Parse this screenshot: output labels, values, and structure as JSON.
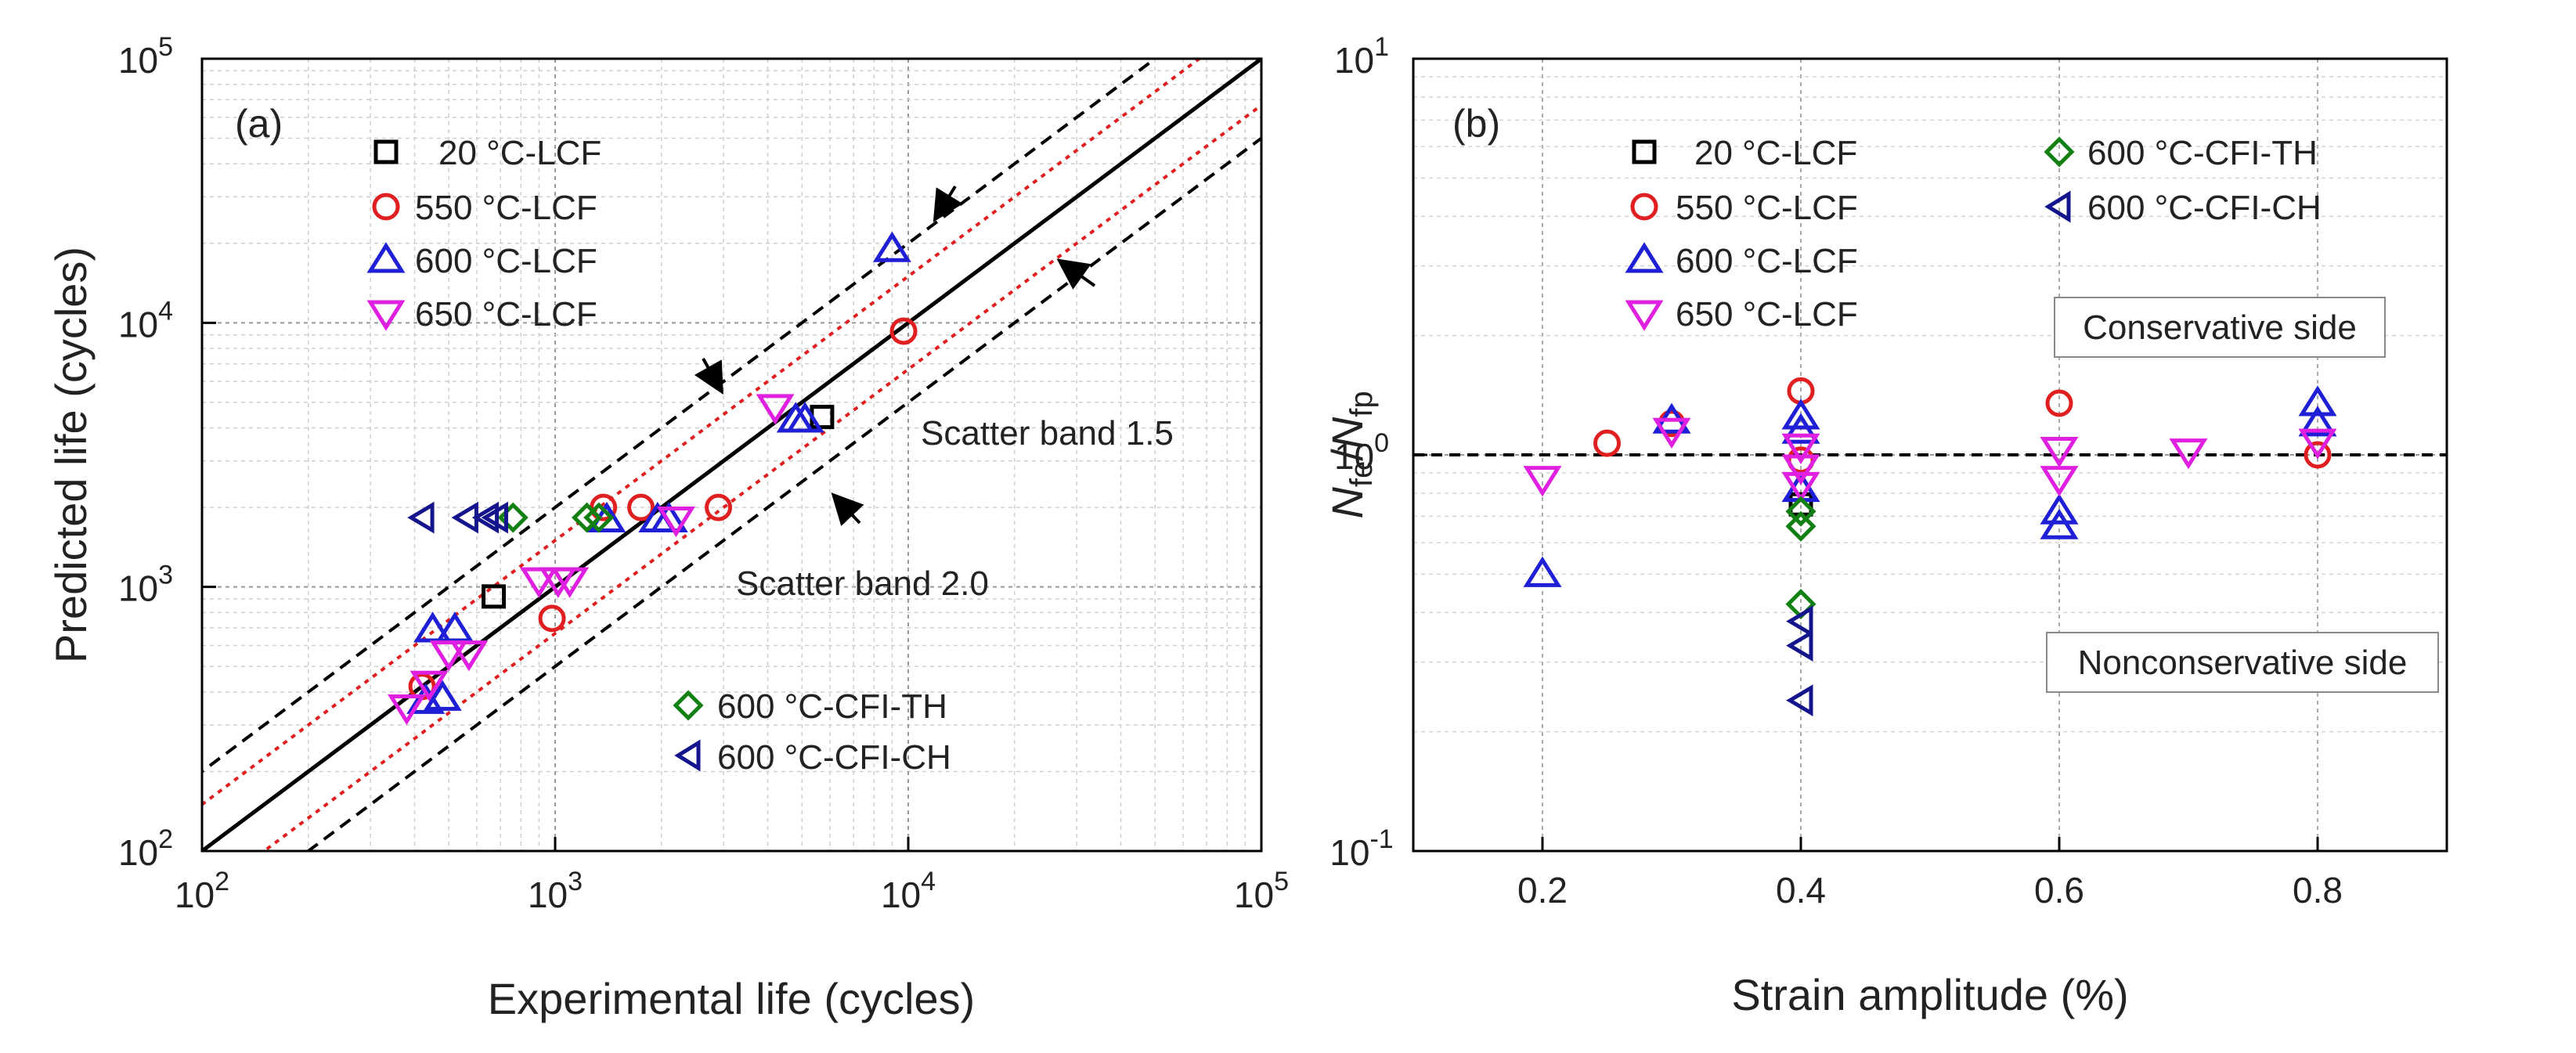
{
  "chart_data": [
    {
      "type": "scatter",
      "panel_label": "(a)",
      "xscale": "log",
      "yscale": "log",
      "xlabel": "Experimental life (cycles)",
      "ylabel": "Predicted life (cycles)",
      "xlim": [
        100,
        100000
      ],
      "ylim": [
        100,
        100000
      ],
      "xticks": [
        {
          "value": 100,
          "base": "10",
          "exp": "2"
        },
        {
          "value": 1000,
          "base": "10",
          "exp": "3"
        },
        {
          "value": 10000,
          "base": "10",
          "exp": "4"
        },
        {
          "value": 100000,
          "base": "10",
          "exp": "5"
        }
      ],
      "yticks": [
        {
          "value": 100,
          "base": "10",
          "exp": "2"
        },
        {
          "value": 1000,
          "base": "10",
          "exp": "3"
        },
        {
          "value": 10000,
          "base": "10",
          "exp": "4"
        },
        {
          "value": 100000,
          "base": "10",
          "exp": "5"
        }
      ],
      "grid": true,
      "reference_lines": [
        {
          "factor": 1,
          "style": "solid",
          "color": "#000000"
        },
        {
          "factor": 1.5,
          "style": "dotted",
          "color": "#e02020"
        },
        {
          "factor": 0.6667,
          "style": "dotted",
          "color": "#e02020"
        },
        {
          "factor": 2,
          "style": "dashed",
          "color": "#000000"
        },
        {
          "factor": 0.5,
          "style": "dashed",
          "color": "#000000"
        }
      ],
      "annotations": [
        "Scatter band 1.5",
        "Scatter band 2.0"
      ],
      "legend": [
        {
          "label": "20 °C-LCF",
          "marker": "square",
          "color": "#000000"
        },
        {
          "label": "550 °C-LCF",
          "marker": "circle",
          "color": "#e02020"
        },
        {
          "label": "600 °C-LCF",
          "marker": "triangle-up",
          "color": "#1f1fd6"
        },
        {
          "label": "650 °C-LCF",
          "marker": "triangle-down",
          "color": "#e020e0"
        },
        {
          "label": "600 °C-CFI-TH",
          "marker": "diamond",
          "color": "#138013"
        },
        {
          "label": "600 °C-CFI-CH",
          "marker": "triangle-left",
          "color": "#14148c"
        }
      ],
      "series": [
        {
          "name": "20 °C-LCF",
          "points": [
            [
              670,
              920
            ],
            [
              5700,
              4400
            ]
          ]
        },
        {
          "name": "550 °C-LCF",
          "points": [
            [
              420,
              420
            ],
            [
              980,
              760
            ],
            [
              1370,
              2000
            ],
            [
              1750,
              2000
            ],
            [
              2900,
              2000
            ],
            [
              9700,
              9300
            ]
          ]
        },
        {
          "name": "600 °C-LCF",
          "points": [
            [
              430,
              370
            ],
            [
              450,
              690
            ],
            [
              480,
              380
            ],
            [
              520,
              690
            ],
            [
              1400,
              1800
            ],
            [
              1950,
              1800
            ],
            [
              2100,
              1800
            ],
            [
              4800,
              4300
            ],
            [
              5100,
              4300
            ],
            [
              9000,
              19000
            ]
          ]
        },
        {
          "name": "650 °C-LCF",
          "points": [
            [
              380,
              350
            ],
            [
              440,
              430
            ],
            [
              500,
              560
            ],
            [
              570,
              560
            ],
            [
              900,
              1060
            ],
            [
              1020,
              1060
            ],
            [
              1100,
              1060
            ],
            [
              2200,
              1800
            ],
            [
              4200,
              4800
            ]
          ]
        },
        {
          "name": "600 °C-CFI-TH",
          "points": [
            [
              760,
              1830
            ],
            [
              1230,
              1830
            ],
            [
              1330,
              1830
            ]
          ]
        },
        {
          "name": "600 °C-CFI-CH",
          "points": [
            [
              420,
              1830
            ],
            [
              560,
              1830
            ],
            [
              640,
              1830
            ],
            [
              680,
              1830
            ]
          ]
        }
      ]
    },
    {
      "type": "scatter",
      "panel_label": "(b)",
      "yscale": "log",
      "xlabel": "Strain amplitude (%)",
      "ylabel_parts": {
        "n": "N",
        "num_sub": "fe",
        "slash": "/",
        "den_sub": "fp"
      },
      "xlim": [
        0.1,
        0.9
      ],
      "ylim": [
        0.1,
        10
      ],
      "xticks": [
        0.2,
        0.4,
        0.6,
        0.8
      ],
      "xtick_labels": [
        "0.2",
        "0.4",
        "0.6",
        "0.8"
      ],
      "yticks": [
        {
          "value": 0.1,
          "base": "10",
          "exp": "-1"
        },
        {
          "value": 1,
          "base": "10",
          "exp": "0"
        },
        {
          "value": 10,
          "base": "10",
          "exp": "1"
        }
      ],
      "grid": true,
      "reference_line_y": 1.0,
      "annotations": [
        "Conservative side",
        "Nonconservative side"
      ],
      "legend": [
        {
          "label": "20 °C-LCF",
          "marker": "square",
          "color": "#000000"
        },
        {
          "label": "550 °C-LCF",
          "marker": "circle",
          "color": "#e02020"
        },
        {
          "label": "600 °C-LCF",
          "marker": "triangle-up",
          "color": "#1f1fd6"
        },
        {
          "label": "650 °C-LCF",
          "marker": "triangle-down",
          "color": "#e020e0"
        },
        {
          "label": "600 °C-CFI-TH",
          "marker": "diamond",
          "color": "#138013"
        },
        {
          "label": "600 °C-CFI-CH",
          "marker": "triangle-left",
          "color": "#14148c"
        }
      ],
      "series": [
        {
          "name": "20 °C-LCF",
          "points": [
            [
              0.4,
              0.75
            ]
          ]
        },
        {
          "name": "550 °C-LCF",
          "points": [
            [
              0.25,
              1.07
            ],
            [
              0.3,
              1.2
            ],
            [
              0.4,
              1.45
            ],
            [
              0.4,
              0.97
            ],
            [
              0.6,
              1.35
            ],
            [
              0.8,
              1.0
            ]
          ]
        },
        {
          "name": "600 °C-LCF",
          "points": [
            [
              0.2,
              0.5
            ],
            [
              0.3,
              1.22
            ],
            [
              0.4,
              1.25
            ],
            [
              0.4,
              1.15
            ],
            [
              0.4,
              0.82
            ],
            [
              0.6,
              0.72
            ],
            [
              0.6,
              0.66
            ],
            [
              0.8,
              1.35
            ],
            [
              0.8,
              1.2
            ]
          ]
        },
        {
          "name": "650 °C-LCF",
          "points": [
            [
              0.2,
              0.87
            ],
            [
              0.3,
              1.15
            ],
            [
              0.4,
              1.05
            ],
            [
              0.4,
              0.93
            ],
            [
              0.4,
              0.84
            ],
            [
              0.6,
              1.03
            ],
            [
              0.6,
              0.87
            ],
            [
              0.7,
              1.02
            ],
            [
              0.8,
              1.08
            ]
          ]
        },
        {
          "name": "600 °C-CFI-TH",
          "points": [
            [
              0.4,
              0.72
            ],
            [
              0.4,
              0.66
            ],
            [
              0.4,
              0.42
            ]
          ]
        },
        {
          "name": "600 °C-CFI-CH",
          "points": [
            [
              0.4,
              0.38
            ],
            [
              0.4,
              0.33
            ],
            [
              0.4,
              0.24
            ]
          ]
        }
      ]
    }
  ]
}
